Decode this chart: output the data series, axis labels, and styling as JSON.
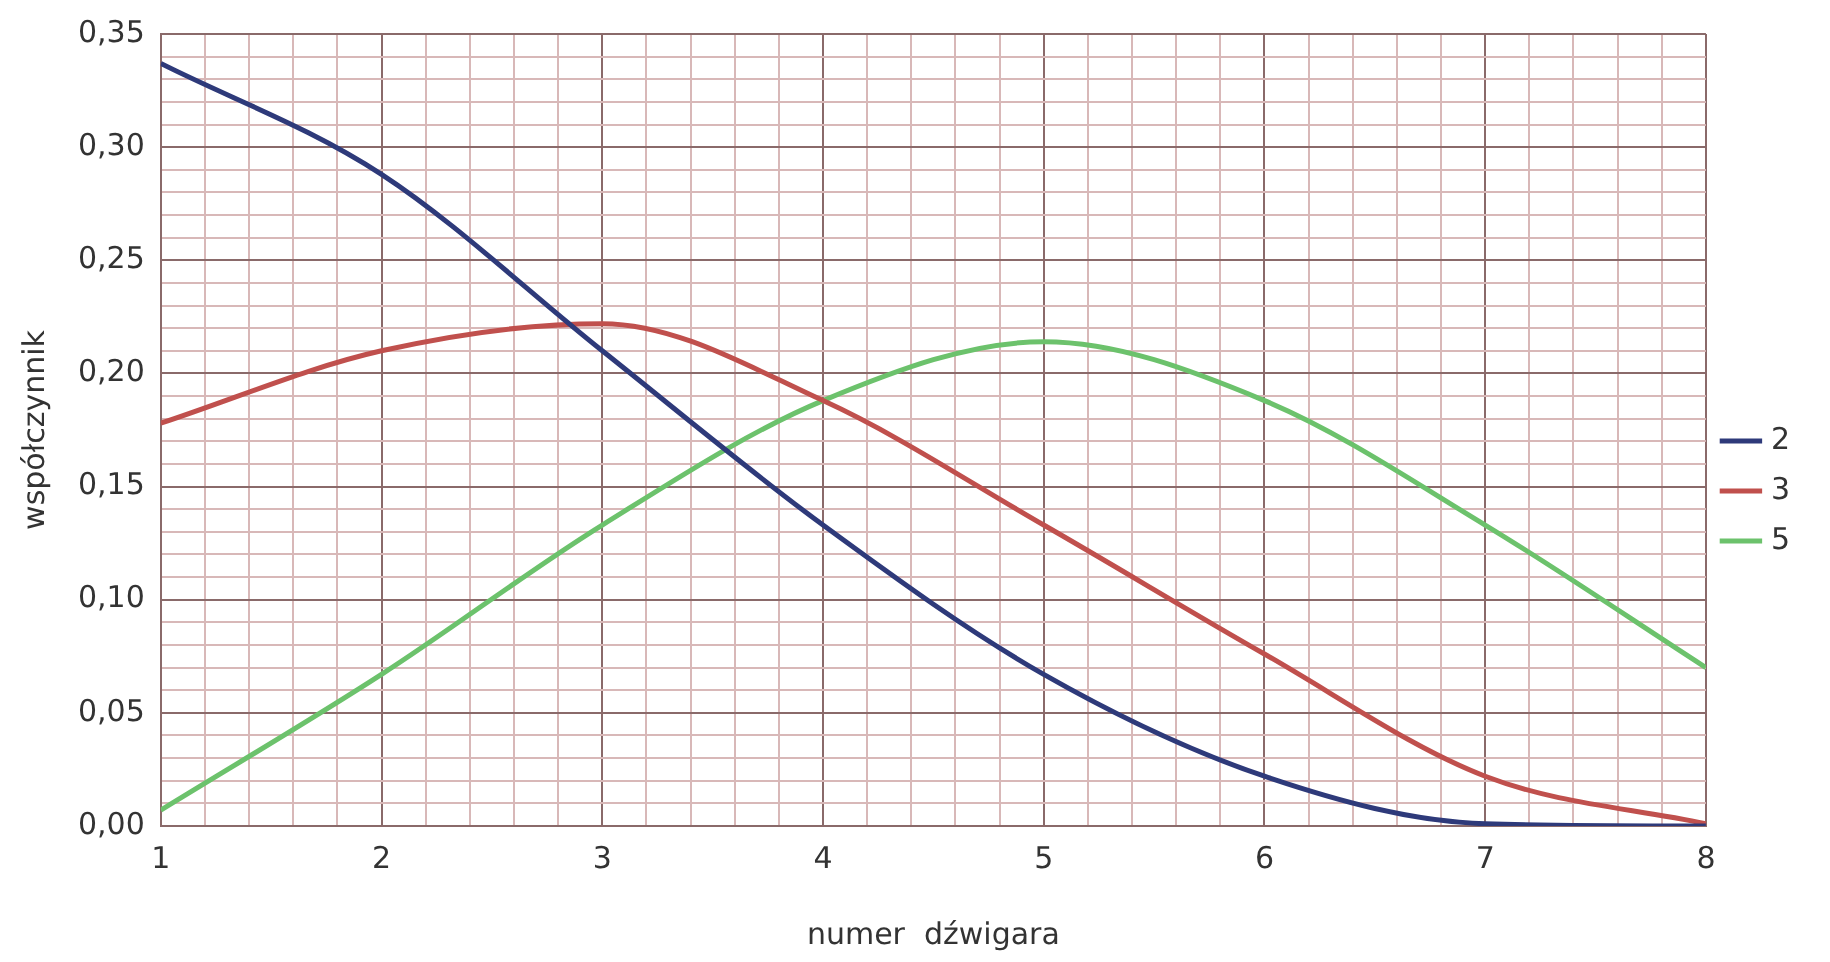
{
  "chart_data": {
    "type": "line",
    "xlabel": "numer  dźwigara",
    "ylabel": "współczynnik",
    "x": [
      1,
      2,
      3,
      4,
      5,
      6,
      7,
      8
    ],
    "series": [
      {
        "name": "2",
        "color": "#2e3a7a",
        "values": [
          0.337,
          0.288,
          0.21,
          0.133,
          0.067,
          0.022,
          0.001,
          0.0
        ]
      },
      {
        "name": "3",
        "color": "#c0504d",
        "values": [
          0.178,
          0.21,
          0.222,
          0.188,
          0.133,
          0.076,
          0.022,
          0.001
        ]
      },
      {
        "name": "5",
        "color": "#6cc26c",
        "values": [
          0.007,
          0.067,
          0.133,
          0.188,
          0.214,
          0.188,
          0.133,
          0.07
        ]
      }
    ],
    "xlim": [
      1,
      8
    ],
    "xticks": [
      1,
      {
        "value": 1.2,
        "label": null
      },
      {
        "value": 1.4,
        "label": null
      },
      {
        "value": 1.6,
        "label": null
      },
      {
        "value": 1.8,
        "label": null
      },
      2,
      {
        "value": 2.2,
        "label": null
      },
      {
        "value": 2.4,
        "label": null
      },
      {
        "value": 2.6,
        "label": null
      },
      {
        "value": 2.8,
        "label": null
      },
      3,
      {
        "value": 3.2,
        "label": null
      },
      {
        "value": 3.4,
        "label": null
      },
      {
        "value": 3.6,
        "label": null
      },
      {
        "value": 3.8,
        "label": null
      },
      4,
      {
        "value": 4.2,
        "label": null
      },
      {
        "value": 4.4,
        "label": null
      },
      {
        "value": 4.6,
        "label": null
      },
      {
        "value": 4.8,
        "label": null
      },
      5,
      {
        "value": 5.2,
        "label": null
      },
      {
        "value": 5.4,
        "label": null
      },
      {
        "value": 5.6,
        "label": null
      },
      {
        "value": 5.8,
        "label": null
      },
      6,
      {
        "value": 6.2,
        "label": null
      },
      {
        "value": 6.4,
        "label": null
      },
      {
        "value": 6.6,
        "label": null
      },
      {
        "value": 6.8,
        "label": null
      },
      7,
      {
        "value": 7.2,
        "label": null
      },
      {
        "value": 7.4,
        "label": null
      },
      {
        "value": 7.6,
        "label": null
      },
      {
        "value": 7.8,
        "label": null
      },
      8
    ],
    "ylim": [
      0,
      0.35
    ],
    "yticks": [
      {
        "value": 0,
        "label": "0,00"
      },
      {
        "value": 0.01,
        "label": null
      },
      {
        "value": 0.02,
        "label": null
      },
      {
        "value": 0.03,
        "label": null
      },
      {
        "value": 0.04,
        "label": null
      },
      {
        "value": 0.05,
        "label": "0,05"
      },
      {
        "value": 0.06,
        "label": null
      },
      {
        "value": 0.07,
        "label": null
      },
      {
        "value": 0.08,
        "label": null
      },
      {
        "value": 0.09,
        "label": null
      },
      {
        "value": 0.1,
        "label": "0,10"
      },
      {
        "value": 0.11,
        "label": null
      },
      {
        "value": 0.12,
        "label": null
      },
      {
        "value": 0.13,
        "label": null
      },
      {
        "value": 0.14,
        "label": null
      },
      {
        "value": 0.15,
        "label": "0,15"
      },
      {
        "value": 0.16,
        "label": null
      },
      {
        "value": 0.17,
        "label": null
      },
      {
        "value": 0.18,
        "label": null
      },
      {
        "value": 0.19,
        "label": null
      },
      {
        "value": 0.2,
        "label": "0,20"
      },
      {
        "value": 0.21,
        "label": null
      },
      {
        "value": 0.22,
        "label": null
      },
      {
        "value": 0.23,
        "label": null
      },
      {
        "value": 0.24,
        "label": null
      },
      {
        "value": 0.25,
        "label": "0,25"
      },
      {
        "value": 0.26,
        "label": null
      },
      {
        "value": 0.27,
        "label": null
      },
      {
        "value": 0.28,
        "label": null
      },
      {
        "value": 0.29,
        "label": null
      },
      {
        "value": 0.3,
        "label": "0,30"
      },
      {
        "value": 0.31,
        "label": null
      },
      {
        "value": 0.32,
        "label": null
      },
      {
        "value": 0.33,
        "label": null
      },
      {
        "value": 0.34,
        "label": null
      },
      {
        "value": 0.35,
        "label": "0,35"
      }
    ],
    "grid": true,
    "legend": "right",
    "marker": "none",
    "line_style": "solid"
  }
}
